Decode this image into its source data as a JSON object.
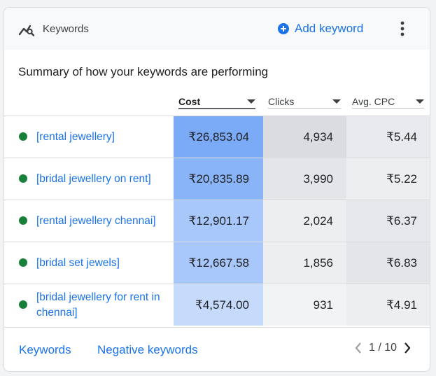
{
  "header": {
    "title": "Keywords",
    "add_label": "Add keyword"
  },
  "summary": "Summary of how your keywords are performing",
  "columns": [
    {
      "label": "Cost",
      "sorted": true
    },
    {
      "label": "Clicks",
      "sorted": false
    },
    {
      "label": "Avg. CPC",
      "sorted": false
    }
  ],
  "rows": [
    {
      "keyword": "[rental jewellery]",
      "cost": "₹26,853.04",
      "clicks": "4,934",
      "cpc": "₹5.44",
      "cost_color": "#7baaf7",
      "clicks_color": "#dadce0",
      "cpc_color": "#e8eaed"
    },
    {
      "keyword": "[bridal jewellery on rent]",
      "cost": "₹20,835.89",
      "clicks": "3,990",
      "cpc": "₹5.22",
      "cost_color": "#8ab4f8",
      "clicks_color": "#e3e5e8",
      "cpc_color": "#eceef0"
    },
    {
      "keyword": "[rental jewellery chennai]",
      "cost": "₹12,901.17",
      "clicks": "2,024",
      "cpc": "₹6.37",
      "cost_color": "#a8c7fa",
      "clicks_color": "#eceef0",
      "cpc_color": "#e5e7ea"
    },
    {
      "keyword": "[bridal set jewels]",
      "cost": "₹12,667.58",
      "clicks": "1,856",
      "cpc": "₹6.83",
      "cost_color": "#a8c7fa",
      "clicks_color": "#eceef0",
      "cpc_color": "#e3e5e8"
    },
    {
      "keyword": "[bridal jewellery for rent in chennai]",
      "cost": "₹4,574.00",
      "clicks": "931",
      "cpc": "₹4.91",
      "cost_color": "#c6dafc",
      "clicks_color": "#f1f3f4",
      "cpc_color": "#eceef0"
    }
  ],
  "footer": {
    "keywords_link": "Keywords",
    "negative_link": "Negative keywords",
    "page": "1 / 10"
  },
  "colors": {
    "accent": "#1a73e8",
    "status_dot": "#188038"
  },
  "icons": {
    "header": "keyword-trend-icon",
    "add": "add-circle-icon",
    "more": "more-vert-icon",
    "sort": "arrow-drop-down-icon",
    "prev": "chevron-left-icon",
    "next": "chevron-right-icon"
  }
}
